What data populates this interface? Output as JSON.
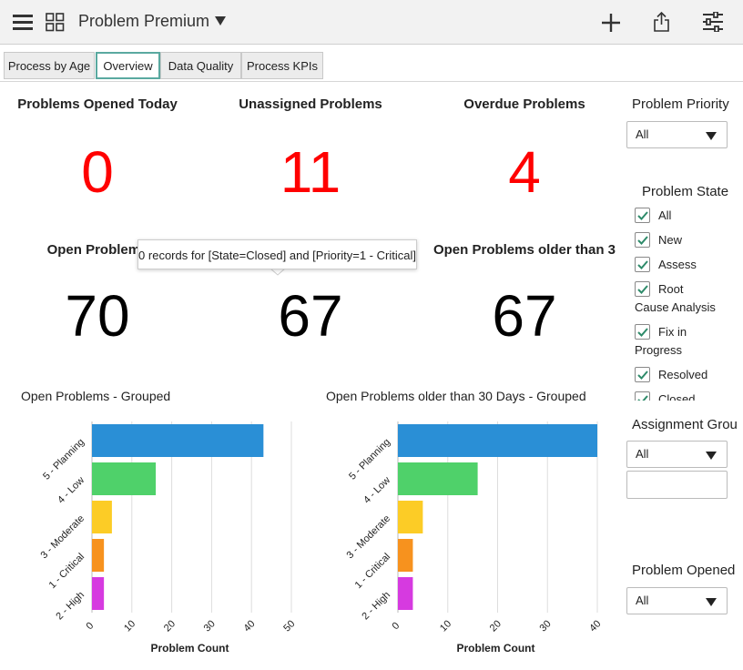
{
  "header": {
    "title": "Problem Premium"
  },
  "tabs": [
    "Process by Age",
    "Overview",
    "Data Quality",
    "Process KPIs"
  ],
  "kpis": [
    {
      "label": "Problems Opened Today",
      "value": 0
    },
    {
      "label": "Unassigned Problems",
      "value": 11
    },
    {
      "label": "Overdue Problems",
      "value": 4
    },
    {
      "label": "Open Problems",
      "value": 70
    },
    {
      "value": 67
    },
    {
      "label": "Open Problems older than 3",
      "value": 67
    }
  ],
  "tooltip": "0 records for [State=Closed] and [Priority=1 - Critical]",
  "chart_data": [
    {
      "type": "hbar",
      "title": "Open Problems - Grouped",
      "categories": [
        "5 - Planning",
        "4 - Low",
        "3 - Moderate",
        "1 - Critical",
        "2 - High"
      ],
      "values": [
        43,
        16,
        5,
        3,
        3
      ],
      "colors": [
        "#2a8fd6",
        "#4fd16a",
        "#fccc26",
        "#f7921e",
        "#d63ae0"
      ],
      "xlim": [
        0,
        50
      ],
      "xticks": [
        0,
        10,
        20,
        30,
        40,
        50
      ],
      "xlabel": "Problem Count",
      "grid": true
    },
    {
      "type": "hbar",
      "title": "Open Problems older than 30 Days - Grouped",
      "categories": [
        "5 - Planning",
        "4 - Low",
        "3 - Moderate",
        "1 - Critical",
        "2 - High"
      ],
      "values": [
        40,
        16,
        5,
        3,
        3
      ],
      "colors": [
        "#2a8fd6",
        "#4fd16a",
        "#fccc26",
        "#f7921e",
        "#d63ae0"
      ],
      "xlim": [
        0,
        40
      ],
      "xticks": [
        0,
        10,
        20,
        30,
        40
      ],
      "xlabel": "Problem Count",
      "grid": true
    }
  ],
  "filters": {
    "priority": {
      "label": "Problem Priority",
      "value": "All"
    },
    "state": {
      "label": "Problem State",
      "options": [
        "All",
        "New",
        "Assess",
        "Root Cause Analysis",
        "Fix in Progress",
        "Resolved",
        "Closed"
      ]
    },
    "assignment": {
      "label": "Assignment Grou",
      "value": "All"
    },
    "opened": {
      "label": "Problem Opened",
      "value": "All"
    }
  }
}
